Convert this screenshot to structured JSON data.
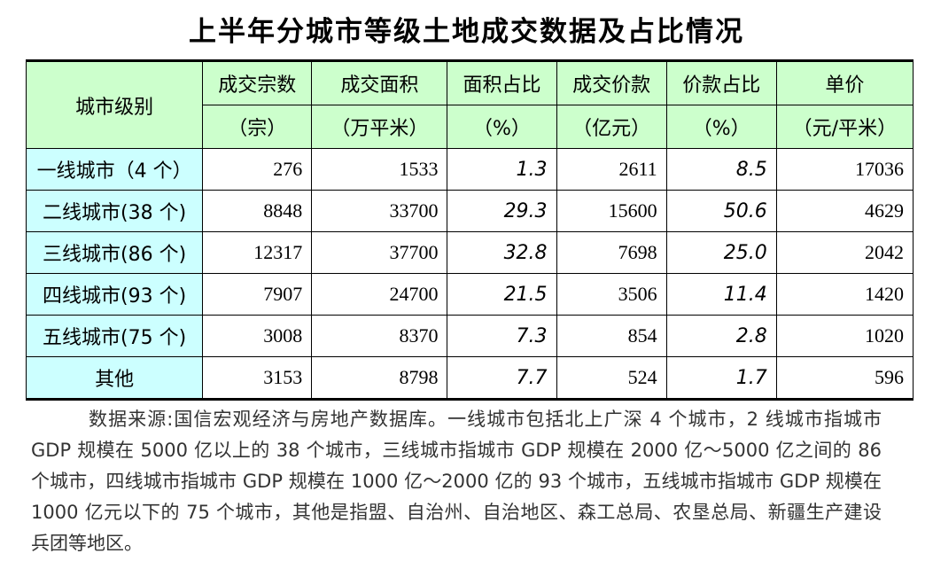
{
  "title": "上半年分城市等级土地成交数据及占比情况",
  "table": {
    "corner_label": "城市级别",
    "headers": [
      {
        "name": "成交宗数",
        "unit": "（宗）"
      },
      {
        "name": "成交面积",
        "unit": "（万平米）"
      },
      {
        "name": "面积占比",
        "unit": "（%）"
      },
      {
        "name": "成交价款",
        "unit": "（亿元）"
      },
      {
        "name": "价款占比",
        "unit": "（%）"
      },
      {
        "name": "单价",
        "unit": "（元/平米）"
      }
    ],
    "rows": [
      {
        "label": "一线城市（4 个）",
        "count": "276",
        "area": "1533",
        "area_pct": "1.3",
        "price": "2611",
        "price_pct": "8.5",
        "unit_price": "17036"
      },
      {
        "label": "二线城市(38 个)",
        "count": "8848",
        "area": "33700",
        "area_pct": "29.3",
        "price": "15600",
        "price_pct": "50.6",
        "unit_price": "4629"
      },
      {
        "label": "三线城市(86 个)",
        "count": "12317",
        "area": "37700",
        "area_pct": "32.8",
        "price": "7698",
        "price_pct": "25.0",
        "unit_price": "2042"
      },
      {
        "label": "四线城市(93 个)",
        "count": "7907",
        "area": "24700",
        "area_pct": "21.5",
        "price": "3506",
        "price_pct": "11.4",
        "unit_price": "1420"
      },
      {
        "label": "五线城市(75 个)",
        "count": "3008",
        "area": "8370",
        "area_pct": "7.3",
        "price": "854",
        "price_pct": "2.8",
        "unit_price": "1020"
      },
      {
        "label": "其他",
        "count": "3153",
        "area": "8798",
        "area_pct": "7.7",
        "price": "524",
        "price_pct": "1.7",
        "unit_price": "596"
      }
    ]
  },
  "note": "数据来源:国信宏观经济与房地产数据库。一线城市包括北上广深 4 个城市，2 线城市指城市 GDP 规模在 5000 亿以上的 38 个城市，三线城市指城市 GDP 规模在 2000 亿～5000 亿之间的 86 个城市，四线城市指城市 GDP 规模在 1000 亿～2000 亿的 93 个城市，五线城市指城市 GDP 规模在 1000 亿元以下的 75 个城市，其他是指盟、自治州、自治地区、森工总局、农垦总局、新疆生产建设兵团等地区。"
}
